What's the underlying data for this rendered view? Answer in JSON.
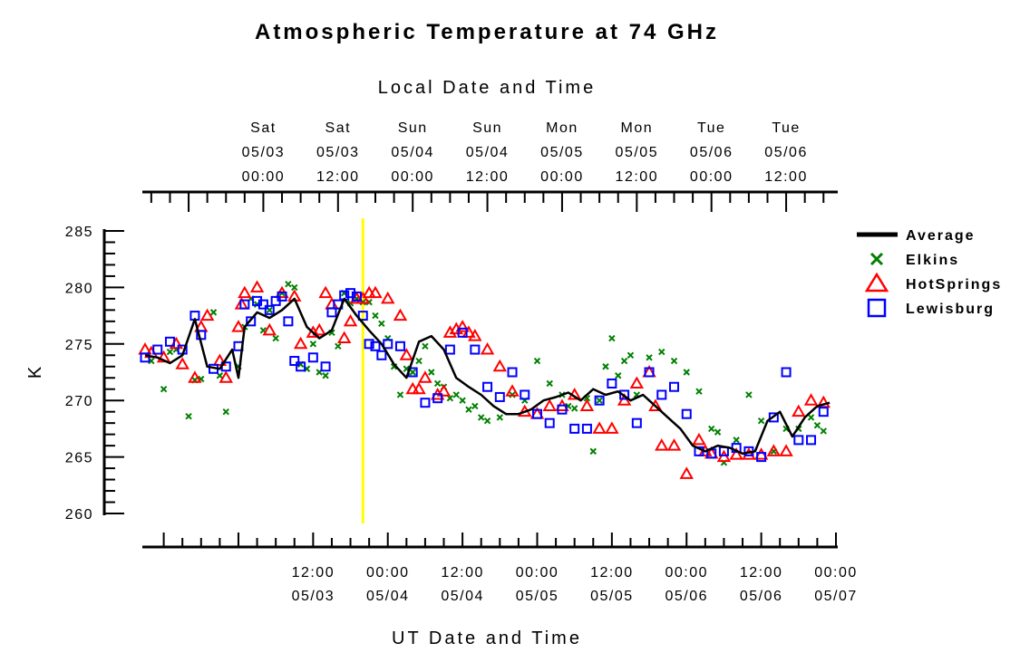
{
  "chart_data": {
    "type": "scatter",
    "title": "Atmospheric Temperature at 74 GHz",
    "top_axis_label": "Local Date and Time",
    "xlabel": "UT Date and Time",
    "ylabel": "K",
    "ylim": [
      260,
      285
    ],
    "yticks": [
      260,
      265,
      270,
      275,
      280,
      285
    ],
    "xlim": [
      "2003-05-02T09:00",
      "2003-05-07T00:00"
    ],
    "xlim_hours": [
      -15,
      96
    ],
    "utc_offset_hours": -4,
    "bottom_ticks": [
      {
        "line1": "12:00",
        "line2": "05/03"
      },
      {
        "line1": "00:00",
        "line2": "05/04"
      },
      {
        "line1": "12:00",
        "line2": "05/04"
      },
      {
        "line1": "00:00",
        "line2": "05/05"
      },
      {
        "line1": "12:00",
        "line2": "05/05"
      },
      {
        "line1": "00:00",
        "line2": "05/06"
      },
      {
        "line1": "12:00",
        "line2": "05/06"
      },
      {
        "line1": "00:00",
        "line2": "05/07"
      }
    ],
    "top_ticks": [
      {
        "day": "Sat",
        "date": "05/03",
        "time": "00:00"
      },
      {
        "day": "Sat",
        "date": "05/03",
        "time": "12:00"
      },
      {
        "day": "Sun",
        "date": "05/04",
        "time": "00:00"
      },
      {
        "day": "Sun",
        "date": "05/04",
        "time": "12:00"
      },
      {
        "day": "Mon",
        "date": "05/05",
        "time": "00:00"
      },
      {
        "day": "Mon",
        "date": "05/05",
        "time": "12:00"
      },
      {
        "day": "Tue",
        "date": "05/06",
        "time": "00:00"
      },
      {
        "day": "Tue",
        "date": "05/06",
        "time": "12:00"
      }
    ],
    "marker_time_hours": 20,
    "marker_color": "#ffff00",
    "legend_position": "right",
    "series": [
      {
        "name": "Average",
        "marker": "line",
        "color": "#000000",
        "x": [
          -15,
          -13,
          -11,
          -9,
          -7,
          -5,
          -3,
          -1,
          0,
          1,
          3,
          5,
          7,
          9,
          11,
          13,
          15,
          17,
          19,
          21,
          23,
          25,
          27,
          29,
          31,
          33,
          35,
          37,
          39,
          41,
          43,
          45,
          47,
          49,
          51,
          53,
          55,
          57,
          59,
          61,
          63,
          65,
          67,
          69,
          71,
          73,
          75,
          77,
          79,
          81,
          83,
          85,
          87,
          89,
          91,
          93,
          95
        ],
        "y": [
          274,
          273.8,
          273.3,
          274,
          277.2,
          273,
          272.8,
          274.5,
          272,
          276.5,
          277.8,
          277.3,
          278,
          279,
          276.5,
          275.5,
          276.2,
          279,
          277.5,
          276.2,
          275,
          273.2,
          272,
          275.2,
          275.7,
          274.5,
          272,
          271.2,
          270.5,
          269.5,
          268.8,
          268.8,
          269.2,
          270,
          270.3,
          270.7,
          270,
          271,
          270.5,
          270.8,
          270,
          270.5,
          269.5,
          268.5,
          267.5,
          266,
          265.5,
          266,
          265.8,
          265.3,
          265.5,
          268.2,
          269,
          266.8,
          268.5,
          269.5,
          269.8
        ]
      },
      {
        "name": "Elkins",
        "marker": "x",
        "color": "#008000",
        "x": [
          -14,
          -12,
          -11,
          -10,
          -8,
          -7,
          -6,
          -4,
          -3,
          -2,
          0,
          1,
          2,
          3,
          4,
          5,
          6,
          7,
          8,
          9,
          10,
          11,
          12,
          13,
          14,
          15,
          16,
          17,
          18,
          19,
          20,
          21,
          22,
          23,
          24,
          25,
          26,
          27,
          28,
          29,
          30,
          31,
          32,
          33,
          34,
          35,
          36,
          37,
          38,
          39,
          40,
          42,
          44,
          46,
          48,
          50,
          52,
          53,
          54,
          56,
          57,
          58,
          59,
          60,
          61,
          62,
          63,
          64,
          66,
          68,
          70,
          72,
          74,
          76,
          77,
          78,
          80,
          82,
          84,
          86,
          88,
          90,
          92,
          93,
          94
        ],
        "y": [
          273.5,
          271,
          274.3,
          274.5,
          268.6,
          271.8,
          271.9,
          277.8,
          272.2,
          269,
          273,
          276.5,
          279,
          278.5,
          276.2,
          278,
          275.5,
          279.5,
          280.3,
          280,
          273.2,
          272.8,
          275,
          272.5,
          272.2,
          276,
          274.8,
          279.5,
          278.6,
          279,
          278.7,
          278.7,
          277.5,
          276.8,
          275.5,
          273,
          270.5,
          272.8,
          272.5,
          273.5,
          274.8,
          272.5,
          271.5,
          271.2,
          270.2,
          270.5,
          270,
          269.2,
          269.5,
          268.5,
          268.2,
          268.5,
          270.5,
          270,
          273.5,
          271.5,
          270.5,
          269.5,
          269.3,
          270.2,
          265.5,
          270,
          273,
          275.5,
          272.2,
          273.5,
          274,
          270.5,
          273.8,
          274.3,
          273.5,
          272.5,
          270.8,
          267.5,
          267.2,
          264.5,
          266.5,
          270.5,
          268.2,
          265.5,
          267.5,
          267.5,
          268.5,
          267.8,
          267.3
        ]
      },
      {
        "name": "HotSprings",
        "marker": "triangle",
        "color": "#ff0000",
        "x": [
          -15,
          -14,
          -12,
          -10,
          -9,
          -7,
          -6,
          -5,
          -3,
          -2,
          0,
          0.5,
          1,
          3,
          5,
          7,
          9,
          10,
          12,
          13,
          14,
          15,
          17,
          18,
          19,
          20,
          21,
          22,
          24,
          26,
          27,
          28,
          29,
          30,
          32,
          33,
          34,
          35,
          36,
          37,
          38,
          40,
          42,
          44,
          46,
          48,
          50,
          52,
          54,
          56,
          58,
          60,
          62,
          64,
          66,
          67,
          68,
          70,
          72,
          74,
          75,
          76,
          78,
          80,
          82,
          84,
          86,
          88,
          90,
          92,
          94
        ],
        "y": [
          274.5,
          274.2,
          273.8,
          275,
          273.2,
          272,
          276.5,
          277.5,
          273.5,
          272,
          276.5,
          278.5,
          279.5,
          280,
          276.2,
          279.5,
          279.2,
          275,
          276,
          276.2,
          279.5,
          278.5,
          275.5,
          277,
          279,
          279,
          279.5,
          279.5,
          279,
          277.5,
          274,
          271,
          271,
          272,
          270.5,
          270.8,
          276,
          276.3,
          276.5,
          276,
          275.7,
          274.5,
          273,
          270.8,
          269,
          268.8,
          269.5,
          269.5,
          270.5,
          269.5,
          267.5,
          267.5,
          270,
          271.5,
          272.5,
          269.5,
          266,
          266,
          263.5,
          266.5,
          265.5,
          265.3,
          265,
          265.2,
          265.2,
          265.2,
          265.5,
          265.5,
          269,
          270,
          269.8
        ]
      },
      {
        "name": "Lewisburg",
        "marker": "square",
        "color": "#0000ff",
        "x": [
          -15,
          -13,
          -11,
          -9,
          -7,
          -6,
          -4,
          -2,
          0,
          1,
          2,
          3,
          4,
          5,
          6,
          7,
          8,
          9,
          10,
          12,
          14,
          15,
          16,
          17,
          18,
          19,
          20,
          21,
          22,
          23,
          24,
          26,
          28,
          30,
          32,
          34,
          36,
          38,
          40,
          42,
          44,
          46,
          48,
          50,
          52,
          54,
          56,
          58,
          60,
          62,
          64,
          66,
          68,
          70,
          72,
          74,
          76,
          78,
          80,
          82,
          84,
          86,
          88,
          90,
          92,
          94
        ],
        "y": [
          273.8,
          274.5,
          275.2,
          274.5,
          277.5,
          275.8,
          272.8,
          273,
          274.8,
          278.5,
          277,
          278.8,
          278.5,
          278,
          278.8,
          279.2,
          277,
          273.5,
          273,
          273.8,
          273,
          277.8,
          278.5,
          279.3,
          279.5,
          279.2,
          277.5,
          275,
          274.8,
          274,
          275,
          274.8,
          272.5,
          269.8,
          270.2,
          274.5,
          276,
          274.5,
          271.2,
          270.3,
          272.5,
          270.5,
          268.8,
          268,
          269.2,
          267.5,
          267.5,
          270,
          271.5,
          270.5,
          268,
          272.5,
          270.5,
          271.2,
          268.8,
          265.5,
          265.3,
          265.5,
          265.8,
          265.5,
          265,
          268.5,
          272.5,
          266.5,
          266.5,
          269
        ]
      }
    ]
  }
}
